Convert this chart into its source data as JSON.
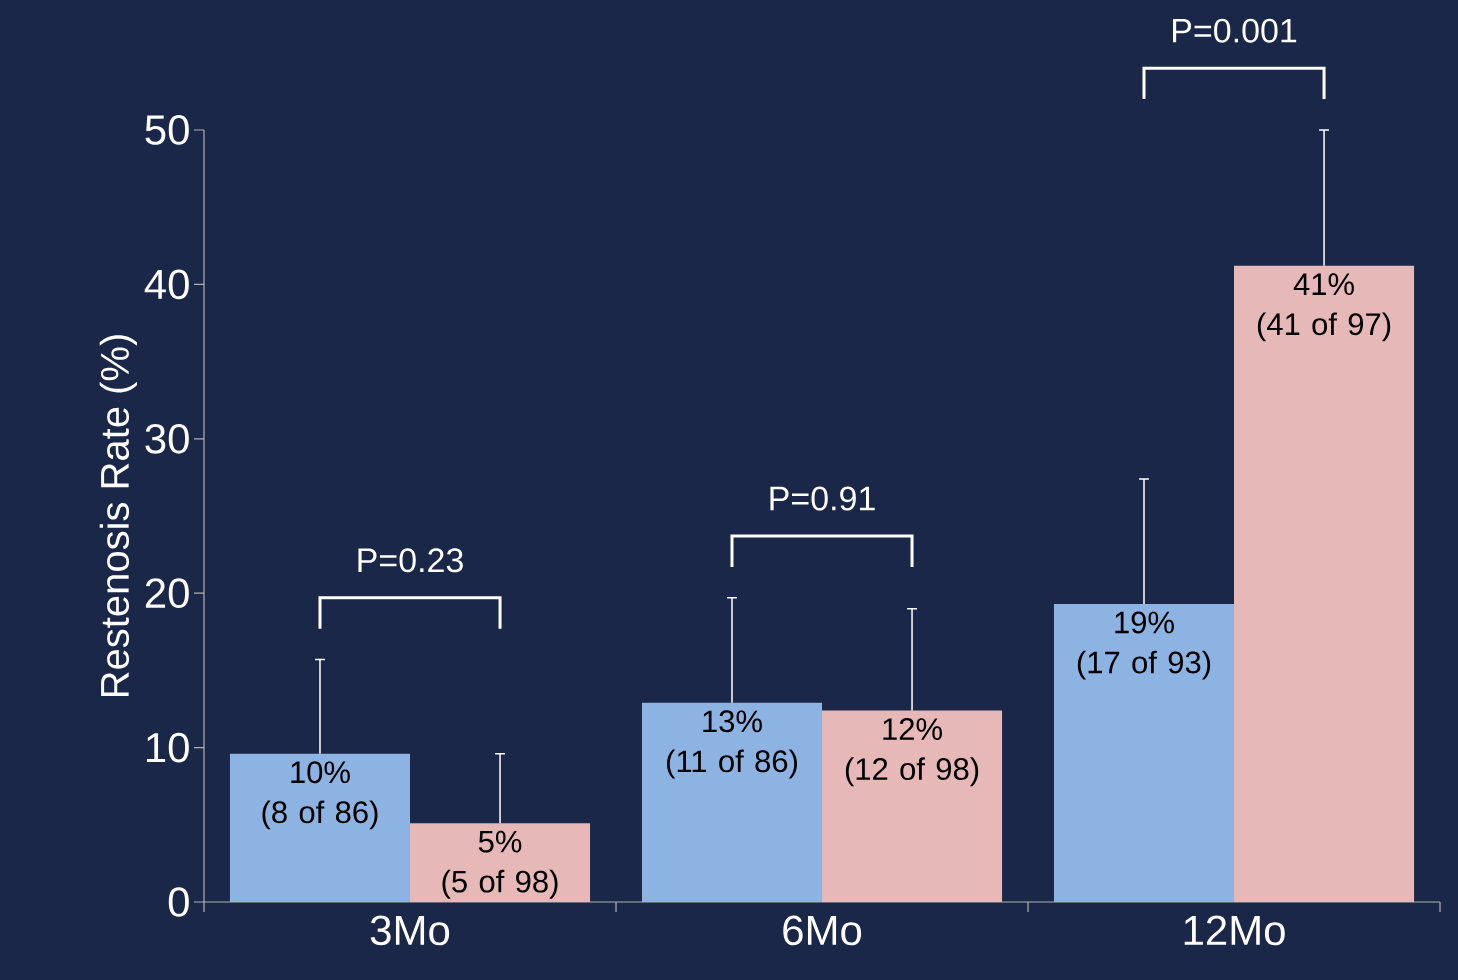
{
  "chart_data": {
    "type": "bar",
    "ylabel": "Restenosis Rate (%)",
    "categories": [
      "3Mo",
      "6Mo",
      "12Mo"
    ],
    "series": [
      {
        "color": "#8db3e2",
        "values": [
          9.6,
          12.9,
          19.3
        ],
        "errors": [
          [
            9.6,
            15.7
          ],
          [
            12.9,
            19.7
          ],
          [
            19.3,
            27.4
          ]
        ],
        "value_labels": [
          "10% (8 of 86)",
          "13% (11 of 86)",
          "19% (17 of 93)"
        ]
      },
      {
        "color": "#e6b9b8",
        "values": [
          5.1,
          12.4,
          41.2
        ],
        "errors": [
          [
            5.1,
            9.6
          ],
          [
            12.4,
            19.0
          ],
          [
            41.2,
            50.0
          ]
        ],
        "value_labels": [
          "5% (5 of 98)",
          "12% (12 of 98)",
          "41% (41 of 97)"
        ]
      }
    ],
    "ylim": [
      0,
      50
    ],
    "yticks": [
      0,
      10,
      20,
      30,
      40,
      50
    ],
    "annotations": [
      "P=0.23",
      "P=0.91",
      "P=0.001"
    ]
  }
}
